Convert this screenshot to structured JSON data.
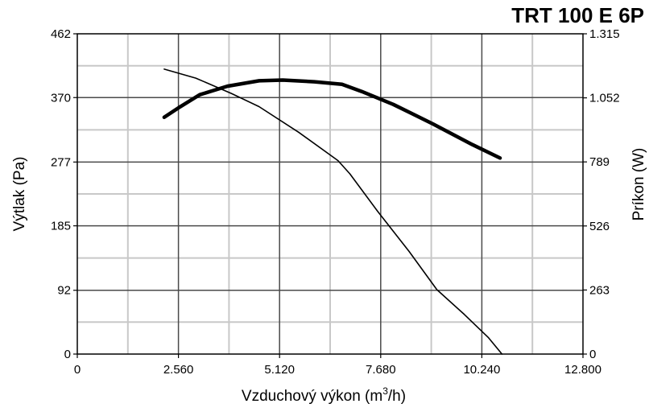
{
  "chart_data": {
    "type": "line",
    "title": "TRT 100 E 6P",
    "xlabel": "Vzduchový výkon (m",
    "xlabel_sup": "3",
    "xlabel_end": "/h)",
    "ylabel": "Výtlak (Pa)",
    "y2label": "Príkon (W)",
    "xlim": [
      0,
      12800
    ],
    "ylim": [
      0,
      462
    ],
    "y2lim": [
      0,
      1315
    ],
    "x_ticks": [
      0,
      2560,
      5120,
      7680,
      10240,
      12800
    ],
    "x_tick_labels": [
      "0",
      "2.560",
      "5.120",
      "7.680",
      "10.240",
      "12.800"
    ],
    "y_ticks": [
      0,
      92,
      185,
      277,
      370,
      462
    ],
    "y_tick_labels": [
      "0",
      "92",
      "185",
      "277",
      "370",
      "462"
    ],
    "y2_ticks": [
      0,
      263,
      526,
      789,
      1052,
      1315
    ],
    "y2_tick_labels": [
      "0",
      "263",
      "526",
      "789",
      "1.052",
      "1.315"
    ],
    "grid": true,
    "series": [
      {
        "axis": "y",
        "stroke": "#000000",
        "x": [
          2200,
          3000,
          3900,
          4600,
          5600,
          6600,
          6900,
          7600,
          8400,
          9100,
          9800,
          10400,
          10750
        ],
        "y": [
          411,
          398,
          376,
          357,
          320,
          279,
          260,
          206,
          148,
          93,
          57,
          24,
          0
        ]
      },
      {
        "axis": "y2",
        "stroke": "#000000",
        "x": [
          2200,
          2600,
          3100,
          3800,
          4600,
          5200,
          6000,
          6700,
          7200,
          8000,
          9000,
          10000,
          10700
        ],
        "y": [
          972,
          1015,
          1065,
          1100,
          1122,
          1125,
          1118,
          1108,
          1078,
          1025,
          945,
          860,
          805
        ]
      }
    ]
  }
}
